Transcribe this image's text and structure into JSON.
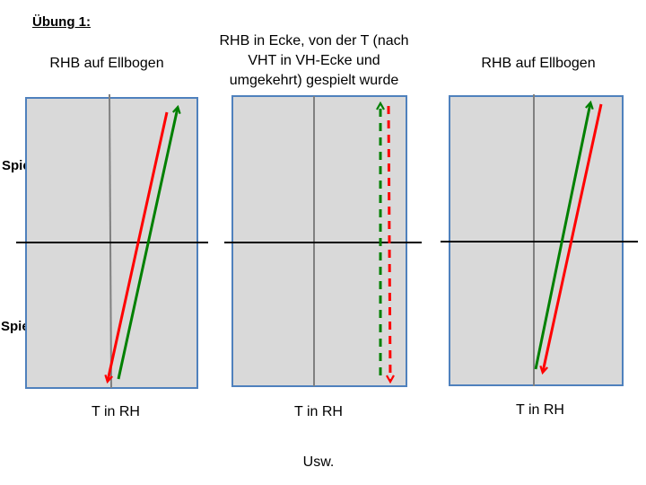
{
  "title": "Übung 1:",
  "player_labels": {
    "a": "Spieler A",
    "b": "Spieler B"
  },
  "tables": [
    {
      "top_label": "RHB auf Ellbogen",
      "bottom_label": "T in RH"
    },
    {
      "top_label_lines": [
        "RHB in Ecke, von der T (nach",
        "VHT in VH-Ecke und",
        "umgekehrt) gespielt wurde"
      ],
      "bottom_label": "T in RH"
    },
    {
      "top_label": "RHB auf Ellbogen",
      "bottom_label": "T in RH"
    }
  ],
  "footer": "Usw.",
  "colors": {
    "table_fill": "#d9d9d9",
    "table_border": "#4f81bd",
    "center_line": "#808080",
    "net": "#000000",
    "arrow_red": "#ff0000",
    "arrow_green": "#008000"
  }
}
